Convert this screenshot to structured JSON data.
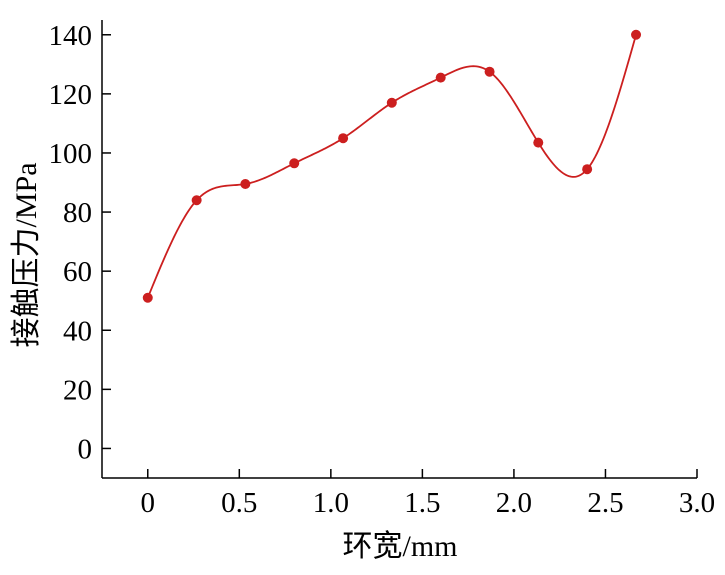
{
  "chart_data": {
    "type": "scatter",
    "title": "",
    "xlabel": "环宽/mm",
    "ylabel": "接触压力/MPa",
    "xlim": [
      -0.25,
      3.0
    ],
    "ylim": [
      -10,
      145
    ],
    "xticks": [
      0,
      0.5,
      1.0,
      1.5,
      2.0,
      2.5,
      3.0
    ],
    "xtick_labels": [
      "0",
      "0.5",
      "1.0",
      "1.5",
      "2.0",
      "2.5",
      "3.0"
    ],
    "yticks": [
      0,
      20,
      40,
      60,
      80,
      100,
      120,
      140
    ],
    "ytick_labels": [
      "0",
      "20",
      "40",
      "60",
      "80",
      "100",
      "120",
      "140"
    ],
    "grid": false,
    "legend": "none",
    "smooth_line": true,
    "series": [
      {
        "color": "#cc1f1f",
        "x": [
          0,
          0.267,
          0.533,
          0.8,
          1.067,
          1.333,
          1.6,
          1.867,
          2.133,
          2.4,
          2.667
        ],
        "y": [
          51,
          84,
          89.5,
          96.5,
          105,
          117,
          125.5,
          127.5,
          103.5,
          94.5,
          140
        ]
      }
    ]
  }
}
